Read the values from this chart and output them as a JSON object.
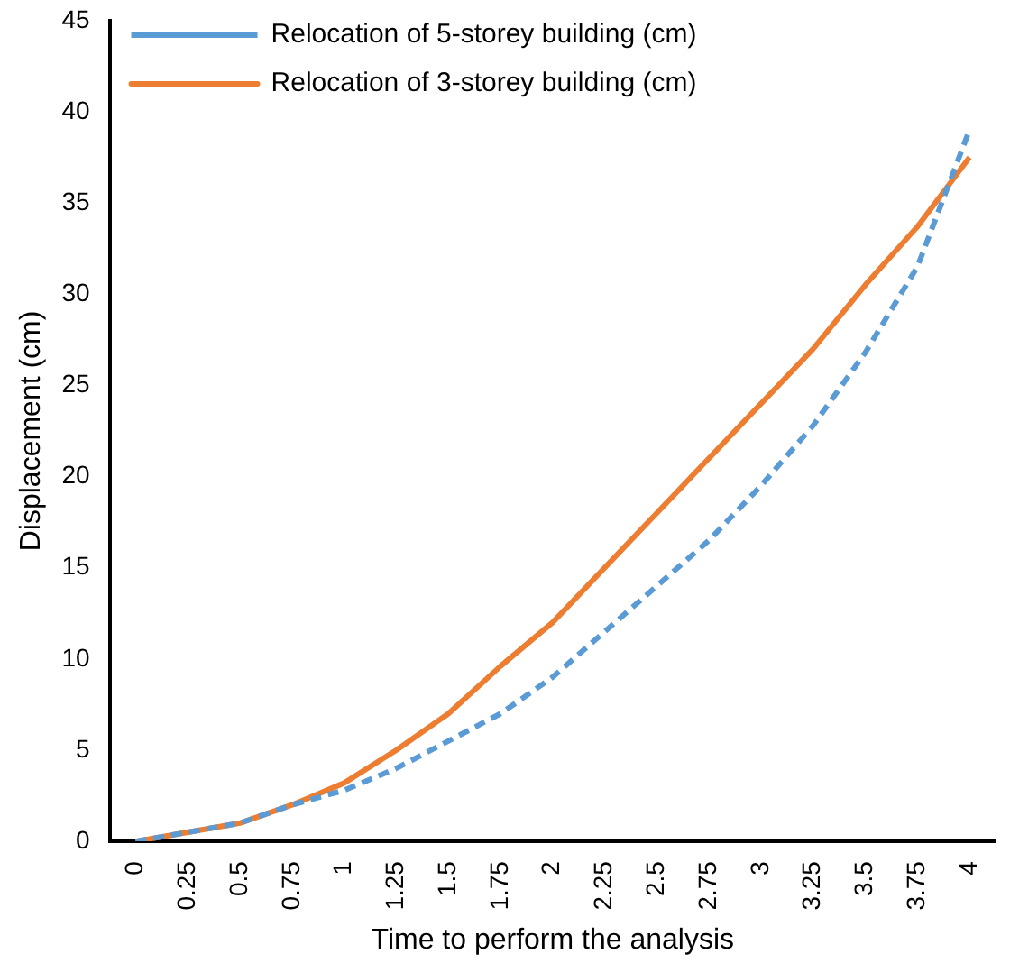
{
  "chart_data": {
    "type": "line",
    "xlabel": "Time to perform the analysis",
    "ylabel": "Displacement (cm)",
    "categories": [
      "0",
      "0.25",
      "0.5",
      "0.75",
      "1",
      "1.25",
      "1.5",
      "1.75",
      "2",
      "2.25",
      "2.5",
      "2.75",
      "3",
      "3.25",
      "3.5",
      "3.75",
      "4"
    ],
    "series": [
      {
        "name": "Relocation of 5-storey building (cm)",
        "color": "#5b9bd5",
        "line_style": "dashed",
        "values": [
          0,
          0.5,
          1,
          2,
          2.8,
          4,
          5.5,
          7,
          9,
          11.5,
          14,
          16.5,
          19.5,
          22.8,
          26.8,
          31.5,
          39
        ]
      },
      {
        "name": "Relocation of 3-storey building (cm)",
        "color": "#ed7d31",
        "line_style": "solid",
        "values": [
          0,
          0.5,
          1,
          2,
          3.2,
          5,
          7,
          9.6,
          12,
          15,
          18,
          21,
          24,
          27,
          30.5,
          33.7,
          37.5
        ]
      }
    ],
    "ylim": [
      0,
      45
    ],
    "yticks": [
      0,
      5,
      10,
      15,
      20,
      25,
      30,
      35,
      40,
      45
    ],
    "grid": false,
    "legend": "top left",
    "marker": "none"
  }
}
